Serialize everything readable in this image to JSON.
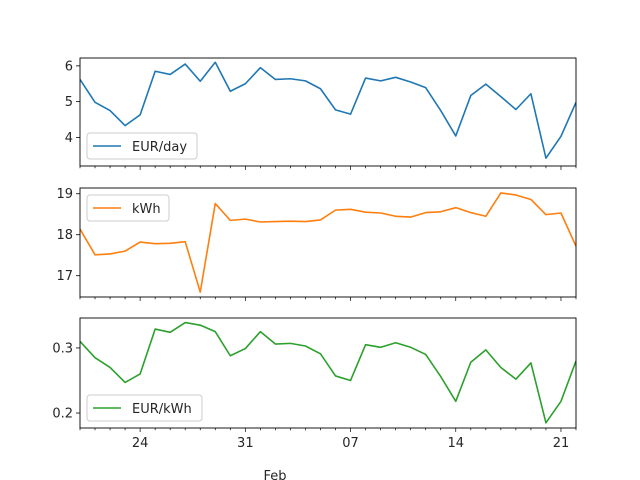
{
  "chart_data": [
    {
      "type": "line",
      "series": [
        {
          "name": "EUR/day",
          "color": "#1f77b4",
          "values": [
            5.62,
            4.98,
            4.75,
            4.33,
            4.63,
            5.85,
            5.76,
            6.05,
            5.57,
            6.1,
            5.29,
            5.5,
            5.95,
            5.62,
            5.64,
            5.58,
            5.36,
            4.77,
            4.65,
            5.66,
            5.58,
            5.68,
            5.55,
            5.39,
            4.75,
            4.04,
            5.17,
            5.49,
            5.14,
            4.78,
            5.22,
            3.42,
            4.03,
            4.98
          ]
        }
      ],
      "ylim": [
        3.2,
        6.22
      ],
      "yticks": [
        4,
        5,
        6
      ],
      "ytick_labels": [
        "4",
        "5",
        "6"
      ],
      "legend": "lower-left"
    },
    {
      "type": "line",
      "series": [
        {
          "name": "kWh",
          "color": "#ff7f0e",
          "values": [
            18.14,
            17.51,
            17.53,
            17.6,
            17.82,
            17.78,
            17.79,
            17.83,
            16.6,
            18.76,
            18.35,
            18.38,
            18.31,
            18.32,
            18.33,
            18.32,
            18.36,
            18.6,
            18.62,
            18.55,
            18.53,
            18.45,
            18.43,
            18.54,
            18.56,
            18.66,
            18.54,
            18.45,
            19.02,
            18.97,
            18.86,
            18.49,
            18.53,
            17.72
          ]
        }
      ],
      "ylim": [
        16.48,
        19.14
      ],
      "yticks": [
        17,
        18,
        19
      ],
      "ytick_labels": [
        "17",
        "18",
        "19"
      ],
      "legend": "upper-left"
    },
    {
      "type": "line",
      "series": [
        {
          "name": "EUR/kWh",
          "color": "#2ca02c",
          "values": [
            0.31,
            0.285,
            0.27,
            0.247,
            0.26,
            0.329,
            0.324,
            0.339,
            0.335,
            0.325,
            0.288,
            0.299,
            0.325,
            0.306,
            0.307,
            0.303,
            0.291,
            0.257,
            0.25,
            0.305,
            0.301,
            0.308,
            0.301,
            0.29,
            0.256,
            0.218,
            0.278,
            0.297,
            0.27,
            0.252,
            0.277,
            0.185,
            0.218,
            0.28
          ]
        }
      ],
      "ylim": [
        0.177,
        0.346
      ],
      "yticks": [
        0.2,
        0.3
      ],
      "ytick_labels": [
        "0.2",
        "0.3"
      ],
      "legend": "lower-left"
    }
  ],
  "x_axis": {
    "count": 34,
    "major_ticks": [
      {
        "index": 4,
        "label": "24"
      },
      {
        "index": 11,
        "label": "31"
      },
      {
        "index": 18,
        "label": "07"
      },
      {
        "index": 25,
        "label": "14"
      },
      {
        "index": 32,
        "label": "21"
      }
    ],
    "month_label": "Feb"
  }
}
